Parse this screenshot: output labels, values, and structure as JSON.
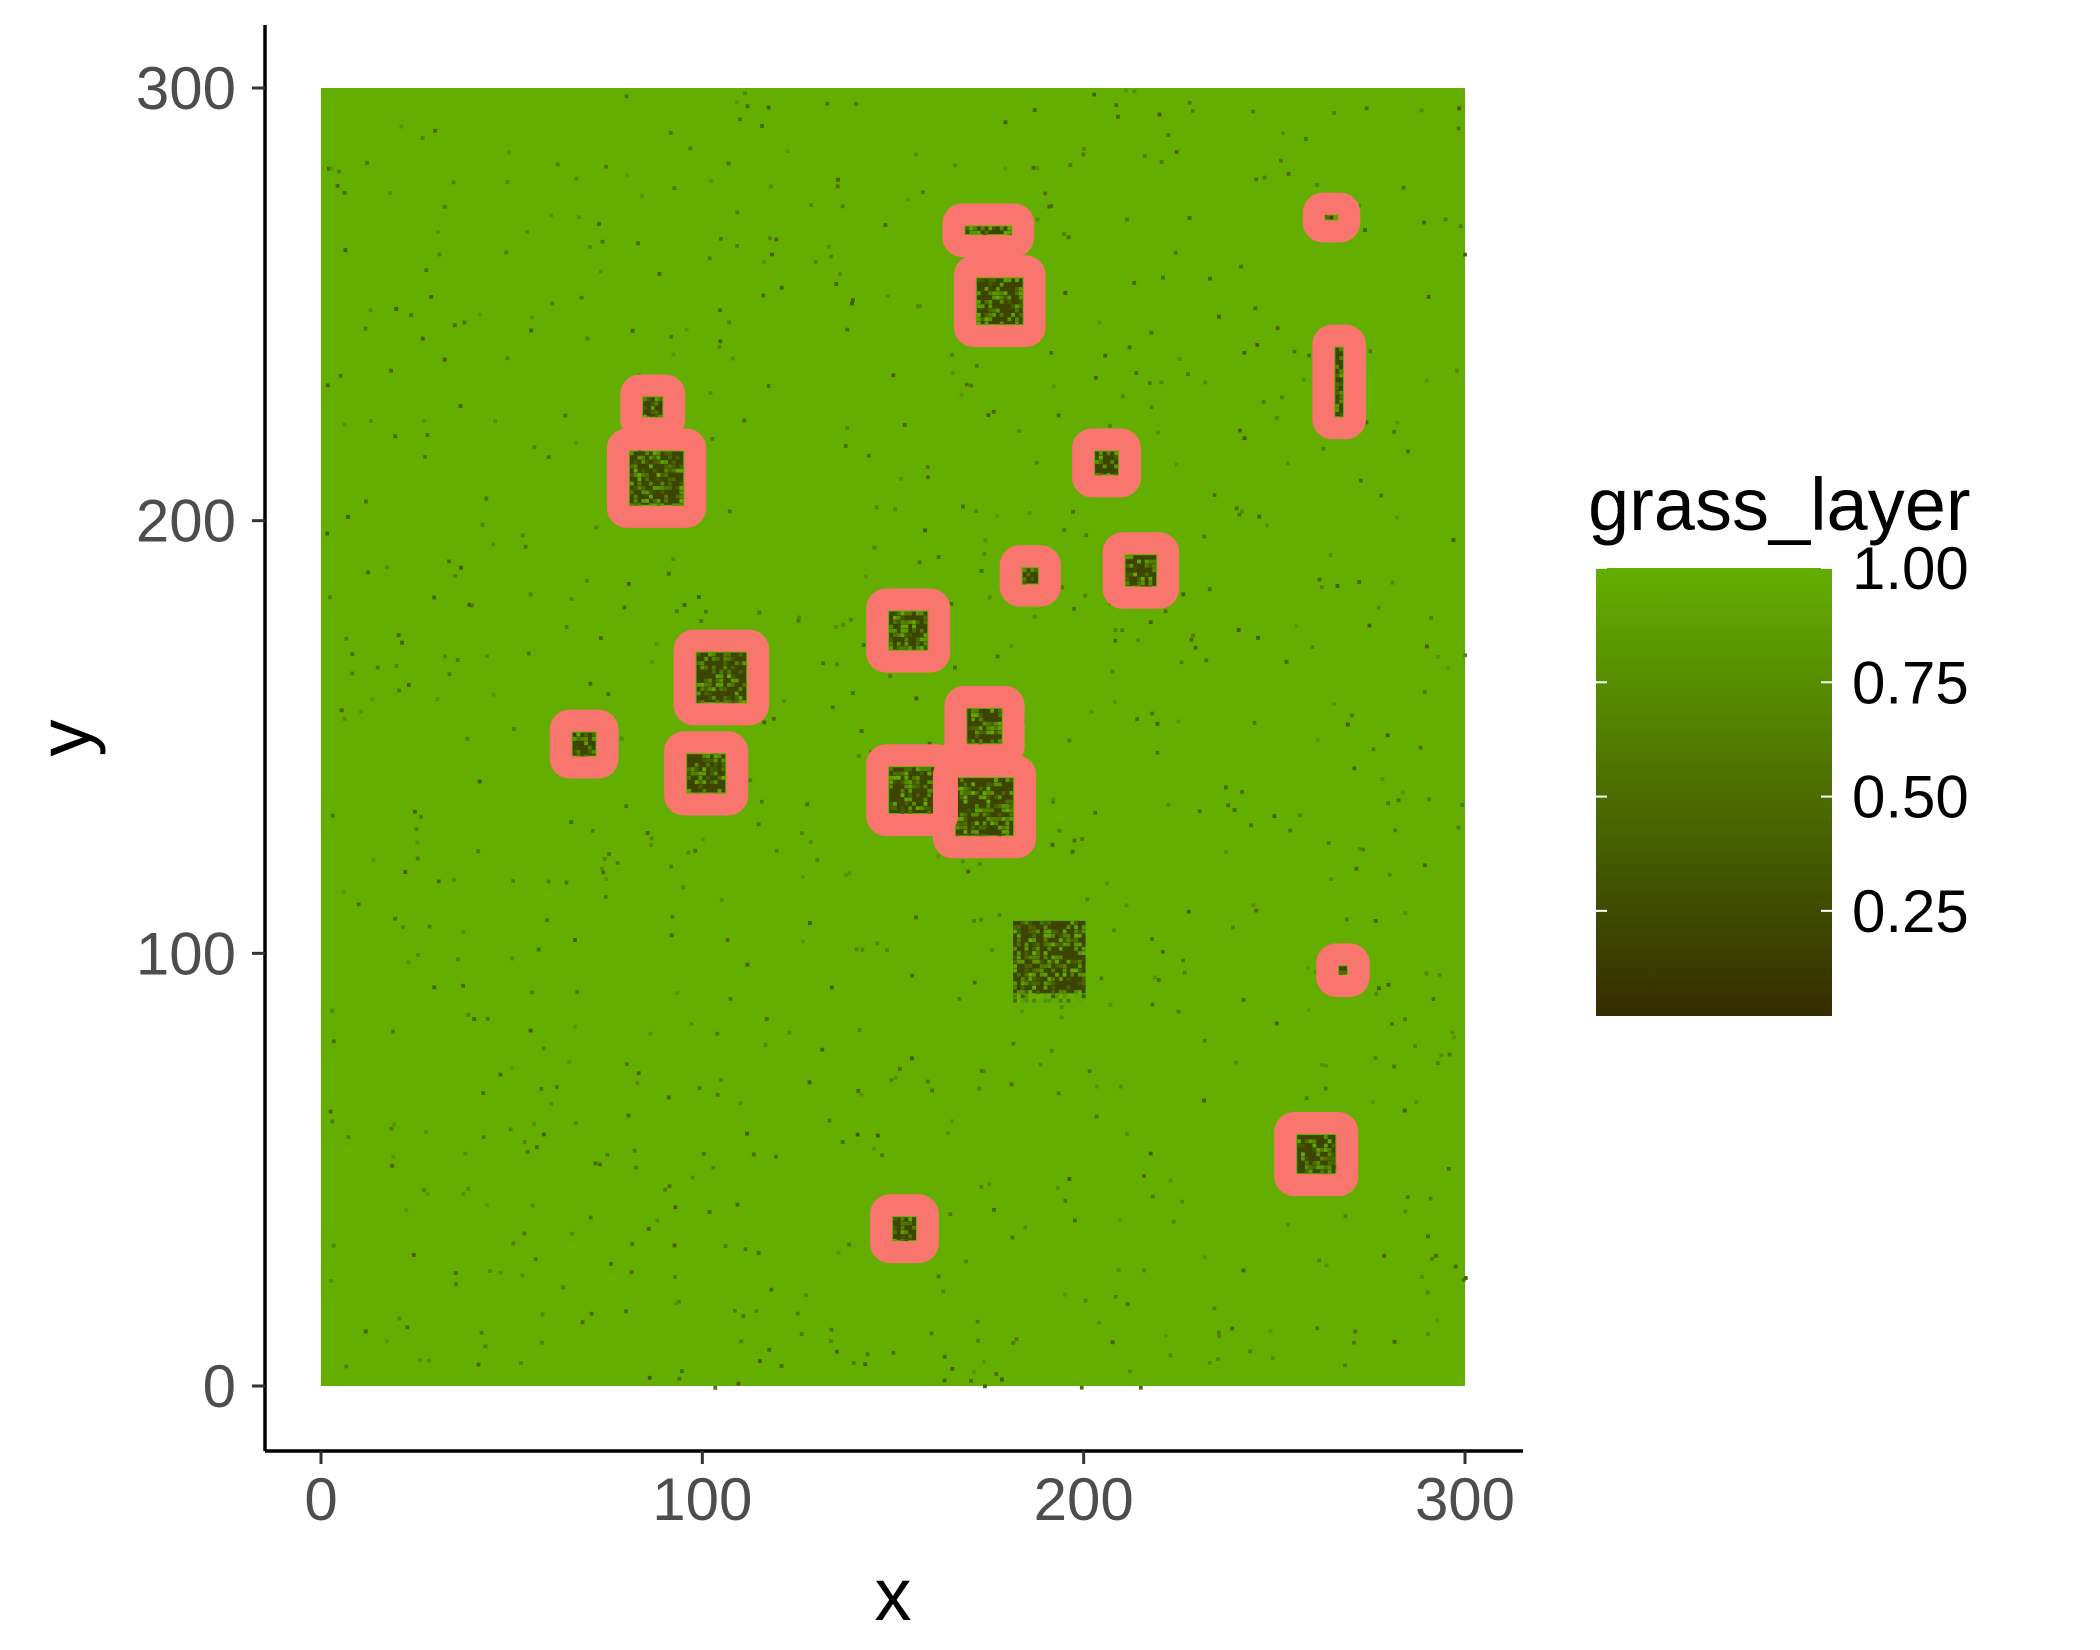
{
  "chart_data": {
    "type": "heatmap",
    "title": "",
    "xlabel": "x",
    "ylabel": "y",
    "xlim": [
      -13,
      316
    ],
    "ylim": [
      -13,
      316
    ],
    "x_ticks": [
      0,
      100,
      200,
      300
    ],
    "y_ticks": [
      0,
      100,
      200,
      300
    ],
    "x_tick_labels": [
      "0",
      "100",
      "200",
      "300"
    ],
    "y_tick_labels": [
      "0",
      "100",
      "200",
      "300"
    ],
    "grid": false,
    "raster": {
      "xmin": 0,
      "xmax": 300,
      "ymin": 0,
      "ymax": 300,
      "background_value": 1.0
    },
    "legend": {
      "title": "grass_layer",
      "placement": "right",
      "min": 0.02,
      "max": 1.0,
      "breaks": [
        1.0,
        0.75,
        0.5,
        0.25
      ],
      "labels": [
        "1.00",
        "0.75",
        "0.50",
        "0.25"
      ],
      "low_color": "#342D00",
      "high_color": "#63AE00"
    },
    "depleted_patches": [
      {
        "x": 175,
        "y": 267,
        "w": 12,
        "h": 2,
        "outlined": true
      },
      {
        "x": 178,
        "y": 250,
        "w": 12,
        "h": 12,
        "outlined": true
      },
      {
        "x": 265,
        "y": 270,
        "w": 3,
        "h": 1,
        "outlined": true
      },
      {
        "x": 267,
        "y": 231,
        "w": 2,
        "h": 18,
        "outlined": true
      },
      {
        "x": 87,
        "y": 226,
        "w": 5,
        "h": 5,
        "outlined": true
      },
      {
        "x": 88,
        "y": 209,
        "w": 14,
        "h": 14,
        "outlined": true
      },
      {
        "x": 206,
        "y": 213,
        "w": 6,
        "h": 6,
        "outlined": true
      },
      {
        "x": 186,
        "y": 187,
        "w": 4,
        "h": 4,
        "outlined": true
      },
      {
        "x": 215,
        "y": 188,
        "w": 8,
        "h": 8,
        "outlined": true
      },
      {
        "x": 154,
        "y": 174,
        "w": 10,
        "h": 10,
        "outlined": true
      },
      {
        "x": 105,
        "y": 163,
        "w": 13,
        "h": 13,
        "outlined": true
      },
      {
        "x": 174,
        "y": 152,
        "w": 9,
        "h": 9,
        "outlined": true
      },
      {
        "x": 69,
        "y": 148,
        "w": 6,
        "h": 6,
        "outlined": true
      },
      {
        "x": 101,
        "y": 141,
        "w": 10,
        "h": 10,
        "outlined": true
      },
      {
        "x": 155,
        "y": 137,
        "w": 12,
        "h": 12,
        "outlined": true
      },
      {
        "x": 174,
        "y": 133,
        "w": 15,
        "h": 15,
        "outlined": true
      },
      {
        "x": 191,
        "y": 98,
        "w": 19,
        "h": 19,
        "outlined": false
      },
      {
        "x": 268,
        "y": 96,
        "w": 2,
        "h": 2,
        "outlined": true
      },
      {
        "x": 261,
        "y": 53,
        "w": 10,
        "h": 10,
        "outlined": true
      },
      {
        "x": 153,
        "y": 36,
        "w": 6,
        "h": 6,
        "outlined": true
      }
    ],
    "outline_color": "#F8766D"
  }
}
